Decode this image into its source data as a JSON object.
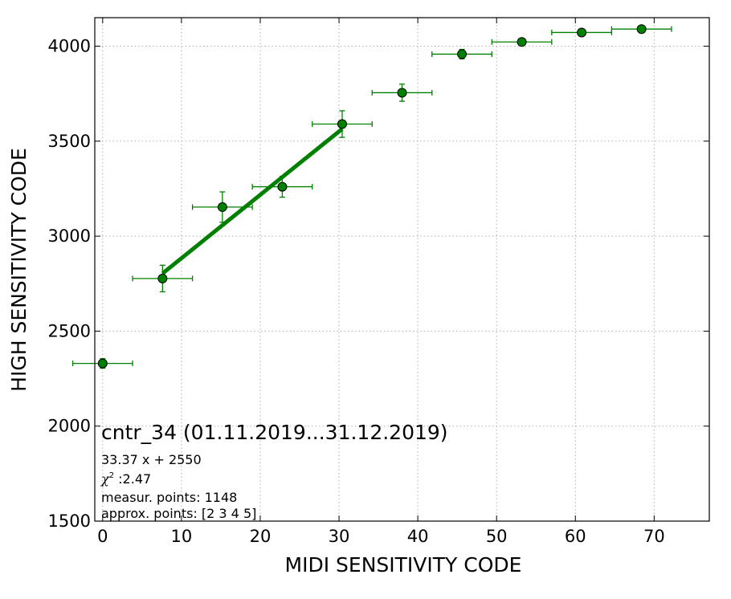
{
  "chart_data": {
    "type": "scatter",
    "xlabel": "MIDI SENSITIVITY CODE",
    "ylabel": "HIGH SENSITIVITY CODE",
    "xlim": [
      -1,
      77
    ],
    "ylim": [
      1500,
      4150
    ],
    "xticks": [
      0,
      10,
      20,
      30,
      40,
      50,
      60,
      70
    ],
    "yticks": [
      1500,
      2000,
      2500,
      3000,
      3500,
      4000
    ],
    "grid": true,
    "color": "#008000",
    "series": [
      {
        "x": [
          0,
          7.6,
          15.2,
          22.8,
          30.4,
          38.0,
          45.6,
          53.2,
          60.8,
          68.4
        ],
        "y": [
          2330,
          2777,
          3153,
          3260,
          3590,
          3755,
          3958,
          4022,
          4072,
          4090
        ],
        "xerr": [
          3.8,
          3.8,
          3.8,
          3.8,
          3.8,
          3.8,
          3.8,
          3.8,
          3.8,
          3.8
        ],
        "yerr": [
          25,
          70,
          80,
          55,
          70,
          45,
          25,
          15,
          12,
          12
        ]
      }
    ],
    "fit": {
      "slope": 33.37,
      "intercept": 2550,
      "x_range": [
        7.6,
        30.4
      ]
    },
    "annotation": {
      "title": "cntr_34 (01.11.2019...31.12.2019)",
      "equation": "33.37 x + 2550",
      "chi_symbol": "χ",
      "chi_sup": "2",
      "chi_value": " :2.47",
      "measur": "measur. points: 1148",
      "approx": "approx. points: [2 3 4 5]"
    }
  }
}
